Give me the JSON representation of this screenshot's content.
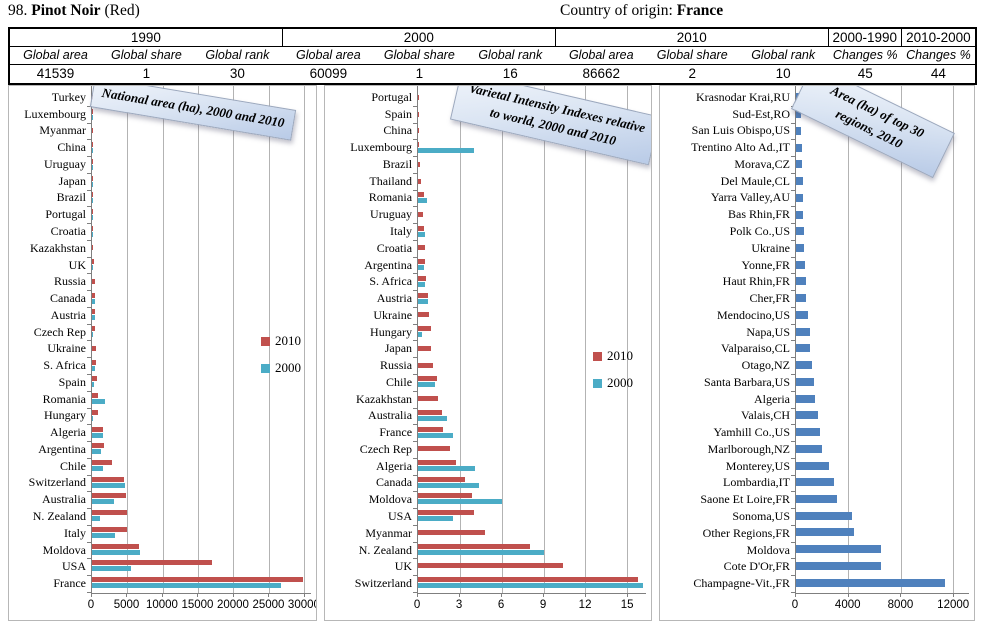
{
  "header": {
    "number": "98.",
    "variety": "Pinot Noir",
    "kind": "(Red)",
    "origin_label": "Country of origin:",
    "origin_value": "France"
  },
  "summary_table": {
    "year_groups": [
      "1990",
      "2000",
      "2010",
      "2000-1990",
      "2010-2000"
    ],
    "col_headers": [
      "Global area",
      "Global share",
      "Global rank",
      "Global area",
      "Global share",
      "Global rank",
      "Global area",
      "Global share",
      "Global rank",
      "Changes %",
      "Changes %"
    ],
    "values": [
      "41539",
      "1",
      "30",
      "60099",
      "1",
      "16",
      "86662",
      "2",
      "10",
      "45",
      "44"
    ]
  },
  "colors": {
    "bar_2010": "#C0504D",
    "bar_2000": "#4BACC6",
    "bar_regions": "#4F81BD",
    "gridline": "#b3b3b3",
    "banner_fill": "#cfdcef"
  },
  "chart_data": [
    {
      "type": "bar",
      "orientation": "horizontal",
      "title": "National area (ha), 2000 and 2010",
      "legend_position": "middle-right",
      "grid": true,
      "xlim": [
        0,
        31000
      ],
      "xticks": [
        0,
        5000,
        10000,
        15000,
        20000,
        25000,
        30000
      ],
      "categories": [
        "Turkey",
        "Luxembourg",
        "Myanmar",
        "China",
        "Uruguay",
        "Japan",
        "Brazil",
        "Portugal",
        "Croatia",
        "Kazakhstan",
        "UK",
        "Russia",
        "Canada",
        "Austria",
        "Czech Rep",
        "Ukraine",
        "S. Africa",
        "Spain",
        "Romania",
        "Hungary",
        "Algeria",
        "Argentina",
        "Chile",
        "Switzerland",
        "Australia",
        "N. Zealand",
        "Italy",
        "Moldova",
        "USA",
        "France"
      ],
      "series": [
        {
          "name": "2010",
          "color": "#C0504D",
          "values": [
            30,
            30,
            30,
            50,
            80,
            80,
            100,
            120,
            150,
            150,
            250,
            400,
            450,
            420,
            420,
            500,
            600,
            750,
            800,
            850,
            1550,
            1700,
            2900,
            4500,
            4800,
            4900,
            5000,
            6600,
            17000,
            29800
          ]
        },
        {
          "name": "2000",
          "color": "#4BACC6",
          "values": [
            0,
            30,
            0,
            30,
            50,
            60,
            50,
            80,
            100,
            0,
            100,
            0,
            400,
            450,
            150,
            0,
            450,
            300,
            1800,
            120,
            1550,
            1250,
            1600,
            4700,
            3100,
            1200,
            3300,
            6800,
            5500,
            26700
          ]
        }
      ]
    },
    {
      "type": "bar",
      "orientation": "horizontal",
      "title": "Varietal Intensity Indexes relative to world, 2000 and 2010",
      "legend_position": "middle-right",
      "grid": true,
      "xlim": [
        0,
        16.35
      ],
      "xticks": [
        0,
        3,
        6,
        9,
        12,
        15
      ],
      "categories": [
        "Portugal",
        "Spain",
        "China",
        "Luxembourg",
        "Brazil",
        "Thailand",
        "Romania",
        "Uruguay",
        "Italy",
        "Croatia",
        "Argentina",
        "S. Africa",
        "Austria",
        "Ukraine",
        "Hungary",
        "Japan",
        "Russia",
        "Chile",
        "Kazakhstan",
        "Australia",
        "France",
        "Czech Rep",
        "Algeria",
        "Canada",
        "Moldova",
        "USA",
        "Myanmar",
        "N. Zealand",
        "UK",
        "Switzerland"
      ],
      "series": [
        {
          "name": "2010",
          "color": "#C0504D",
          "values": [
            0.05,
            0.1,
            0.06,
            0.1,
            0.15,
            0.2,
            0.4,
            0.35,
            0.45,
            0.5,
            0.5,
            0.55,
            0.7,
            0.8,
            0.9,
            0.95,
            1.1,
            1.35,
            1.4,
            1.7,
            1.8,
            2.3,
            2.7,
            3.4,
            3.9,
            4.0,
            4.8,
            8.0,
            10.4,
            15.8
          ]
        },
        {
          "name": "2000",
          "color": "#4BACC6",
          "values": [
            0,
            0,
            0,
            4.0,
            0,
            0,
            0.65,
            0,
            0.5,
            0,
            0.45,
            0.5,
            0.75,
            0,
            0.25,
            0,
            0,
            1.25,
            0,
            2.1,
            2.5,
            0,
            4.1,
            4.4,
            6.0,
            2.5,
            0,
            9.0,
            0,
            16.1
          ]
        }
      ]
    },
    {
      "type": "bar",
      "orientation": "horizontal",
      "title": "Area (ha) of  top 30 regions,  2010",
      "legend_position": "none",
      "grid": true,
      "xlim": [
        0,
        13200
      ],
      "xticks": [
        0,
        4000,
        8000,
        12000
      ],
      "categories": [
        "Krasnodar Krai,RU",
        "Sud-Est,RO",
        "San Luis Obispo,US",
        "Trentino Alto Ad.,IT",
        "Morava,CZ",
        "Del Maule,CL",
        "Yarra Valley,AU",
        "Bas Rhin,FR",
        "Polk Co.,US",
        "Ukraine",
        "Yonne,FR",
        "Haut Rhin,FR",
        "Cher,FR",
        "Mendocino,US",
        "Napa,US",
        "Valparaiso,CL",
        "Otago,NZ",
        "Santa Barbara,US",
        "Algeria",
        "Valais,CH",
        "Yamhill Co.,US",
        "Marlborough,NZ",
        "Monterey,US",
        "Lombardia,IT",
        "Saone Et Loire,FR",
        "Sonoma,US",
        "Other Regions,FR",
        "Moldova",
        "Cote D'Or,FR",
        "Champagne-Vit.,FR"
      ],
      "series": [
        {
          "name": "2010",
          "color": "#4F81BD",
          "values": [
            380,
            400,
            400,
            450,
            450,
            500,
            500,
            560,
            590,
            620,
            700,
            760,
            760,
            900,
            1050,
            1100,
            1200,
            1400,
            1450,
            1650,
            1800,
            2000,
            2500,
            2900,
            3100,
            4250,
            4400,
            6450,
            6500,
            11400
          ]
        }
      ]
    }
  ]
}
